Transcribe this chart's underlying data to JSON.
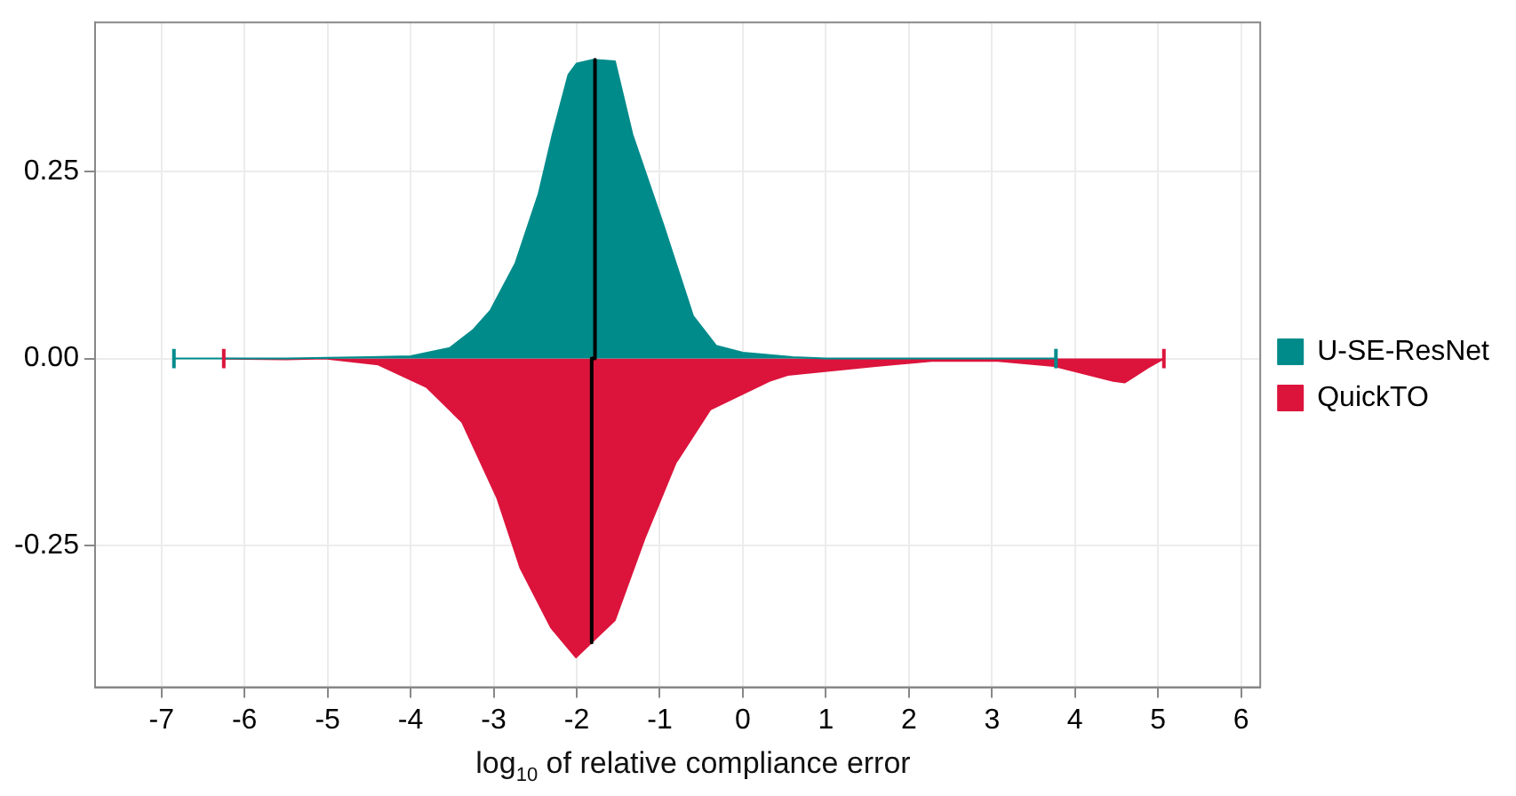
{
  "chart_data": {
    "type": "area",
    "xlabel": "log$_{10}$ of relative compliance error",
    "xlim": [
      -7.8,
      6.23
    ],
    "ylim": [
      -0.44,
      0.45
    ],
    "xticks": [
      -7,
      -6,
      -5,
      -4,
      -3,
      -2,
      -1,
      0,
      1,
      2,
      3,
      4,
      5,
      6
    ],
    "yticks": [
      {
        "value": -0.25,
        "label": "-0.25"
      },
      {
        "value": 0,
        "label": "0.00"
      },
      {
        "value": 0.25,
        "label": "0.25"
      }
    ],
    "grid": true,
    "legend": "right",
    "marker": "none",
    "series": [
      {
        "name": "U-SE-ResNet",
        "type": "area",
        "color": "#008b8b",
        "x": [
          -6.85,
          -5.5,
          -4.5,
          -4,
          -3.53,
          -3.25,
          -3.04,
          -2.74,
          -2.46,
          -2.29,
          -2.1,
          -2.0,
          -1.8,
          -1.54,
          -1.33,
          -0.96,
          -0.6,
          -0.32,
          0,
          0.6,
          1,
          3.77
        ],
        "values": [
          0,
          0,
          0.002,
          0.003,
          0.014,
          0.038,
          0.064,
          0.127,
          0.22,
          0.3,
          0.38,
          0.395,
          0.4,
          0.398,
          0.3,
          0.18,
          0.057,
          0.017,
          0.008,
          0.002,
          0,
          0
        ]
      },
      {
        "name": "QuickTO",
        "type": "area",
        "color": "#dc143c",
        "x": [
          -6.25,
          -5.5,
          -5.03,
          -4.39,
          -3.81,
          -3.38,
          -2.96,
          -2.68,
          -2.31,
          -2.01,
          -1.82,
          -1.54,
          -1.18,
          -0.81,
          -0.39,
          0.32,
          0.54,
          1.6,
          2.3,
          3.04,
          3.75,
          4.46,
          4.6,
          4.88,
          5.07
        ],
        "values": [
          0,
          -0.001,
          0,
          -0.008,
          -0.038,
          -0.085,
          -0.186,
          -0.28,
          -0.36,
          -0.4,
          -0.38,
          -0.35,
          -0.24,
          -0.14,
          -0.068,
          -0.03,
          -0.022,
          -0.01,
          -0.003,
          -0.003,
          -0.01,
          -0.03,
          -0.032,
          -0.012,
          0
        ]
      },
      {
        "type": "line",
        "color": "#000000",
        "x": [
          -1.78,
          -1.78,
          -1.82,
          -1.82
        ],
        "values": [
          0.4,
          0,
          0,
          -0.38
        ]
      },
      {
        "type": "line",
        "color": "#008b8b",
        "x": [
          -6.85,
          -6.85
        ],
        "values": [
          -0.013,
          0.013
        ]
      },
      {
        "type": "line",
        "color": "#008b8b",
        "x": [
          3.77,
          3.77
        ],
        "values": [
          -0.013,
          0.013
        ]
      },
      {
        "type": "line",
        "color": "#dc143c",
        "x": [
          -6.25,
          -6.25
        ],
        "values": [
          -0.013,
          0.013
        ]
      },
      {
        "type": "line",
        "color": "#dc143c",
        "x": [
          5.07,
          5.07
        ],
        "values": [
          -0.013,
          0.013
        ]
      }
    ]
  }
}
